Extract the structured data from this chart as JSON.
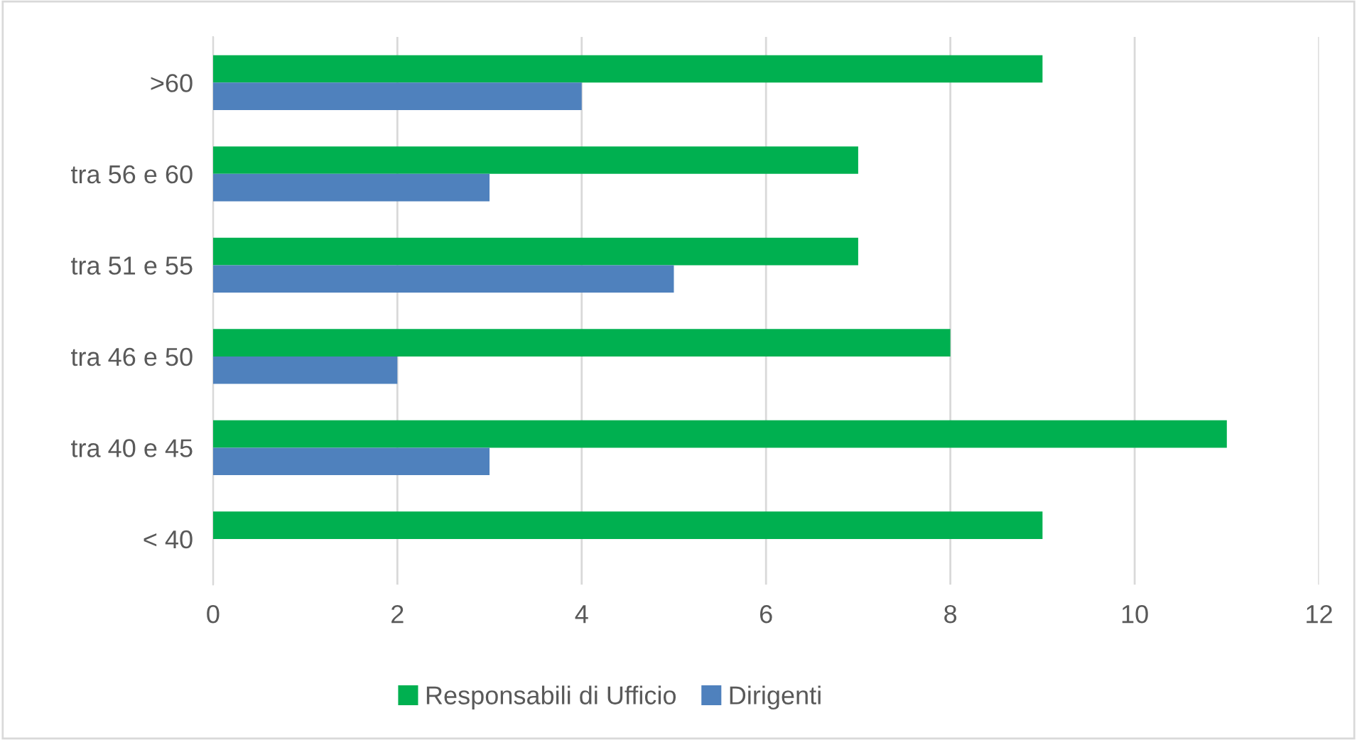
{
  "chart_data": {
    "type": "bar",
    "orientation": "horizontal",
    "categories": [
      ">60",
      "tra 56 e 60",
      "tra 51 e 55",
      "tra 46 e 50",
      "tra 40 e 45",
      "< 40"
    ],
    "series": [
      {
        "name": "Responsabili di Ufficio",
        "color": "#00b050",
        "values": [
          9,
          7,
          7,
          8,
          11,
          9
        ]
      },
      {
        "name": "Dirigenti",
        "color": "#4f81bd",
        "values": [
          4,
          3,
          5,
          2,
          3,
          0
        ]
      }
    ],
    "xlim": [
      0,
      12
    ],
    "xticks": [
      0,
      2,
      4,
      6,
      8,
      10,
      12
    ],
    "grid": "x",
    "legend": "bottom"
  }
}
